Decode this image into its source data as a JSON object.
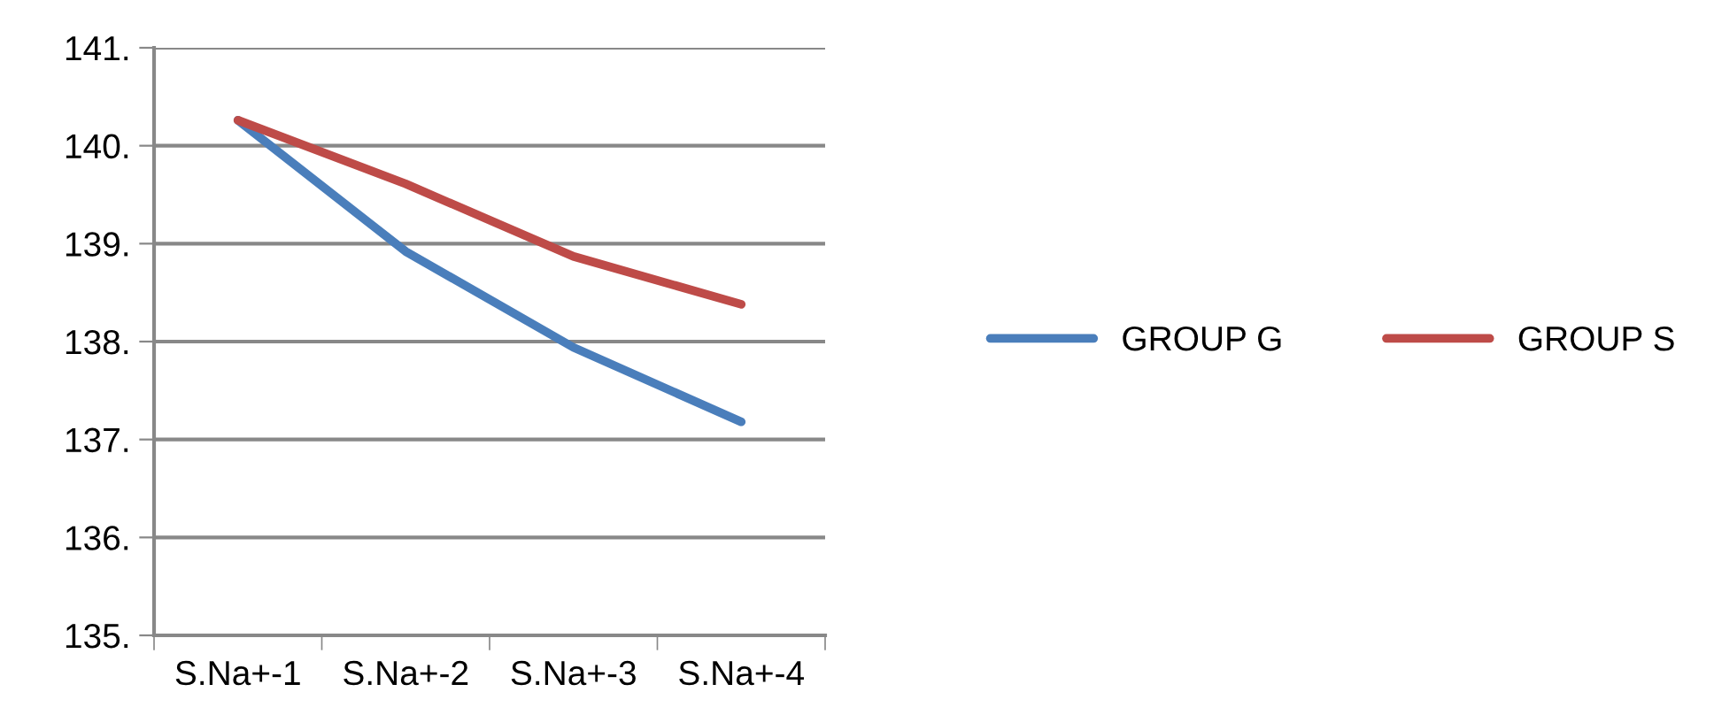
{
  "chart_data": {
    "type": "line",
    "categories": [
      "S.Na+-1",
      "S.Na+-2",
      "S.Na+-3",
      "S.Na+-4"
    ],
    "series": [
      {
        "name": "GROUP G",
        "color": "#4a7ebb",
        "values": [
          140.26,
          138.92,
          137.94,
          137.18
        ]
      },
      {
        "name": "GROUP S",
        "color": "#be4b48",
        "values": [
          140.26,
          139.61,
          138.87,
          138.38
        ]
      }
    ],
    "ylim": [
      135,
      141
    ],
    "yticks": [
      {
        "value": 135,
        "label": "135."
      },
      {
        "value": 136,
        "label": "136."
      },
      {
        "value": 137,
        "label": "137."
      },
      {
        "value": 138,
        "label": "138."
      },
      {
        "value": 139,
        "label": "139."
      },
      {
        "value": 140,
        "label": "140."
      },
      {
        "value": 141,
        "label": "141."
      }
    ],
    "grid": "y",
    "legend": "right",
    "line_style": "solid"
  }
}
